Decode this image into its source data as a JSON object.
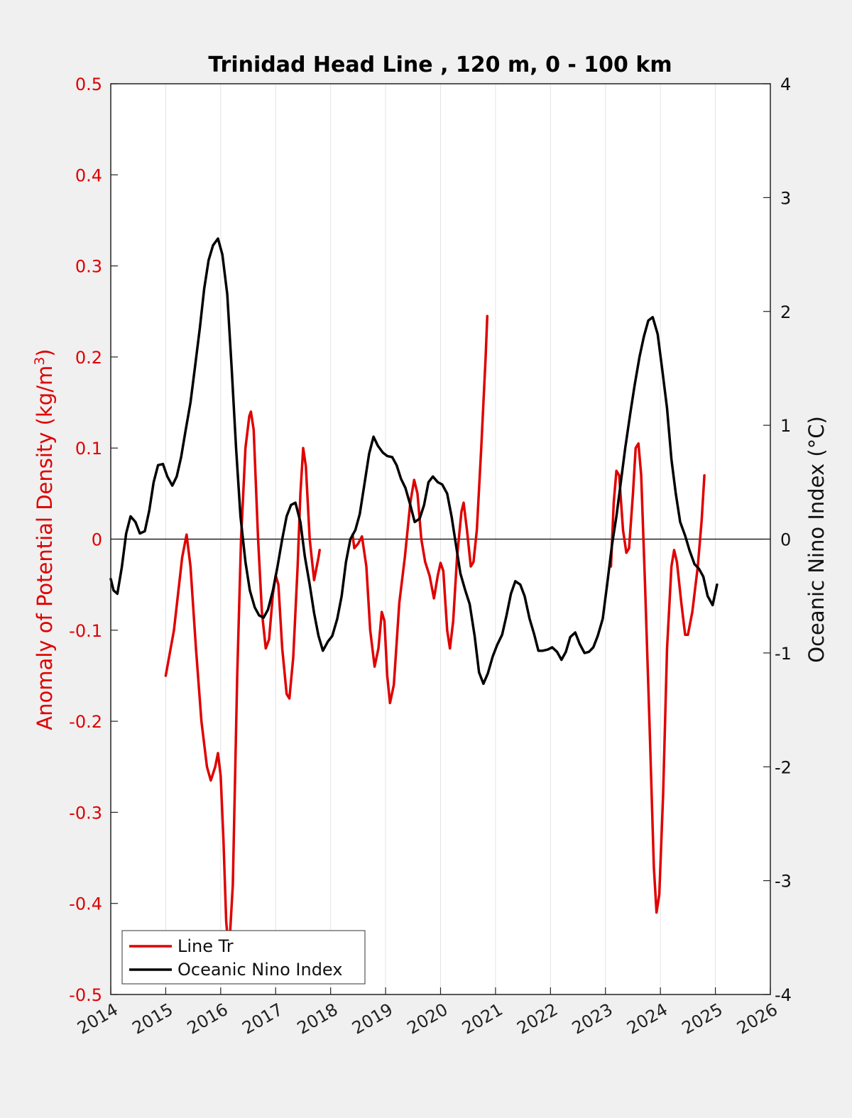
{
  "chart_data": {
    "type": "line",
    "title": "Trinidad Head Line , 120 m, 0 - 100 km",
    "xlim": [
      2014,
      2026
    ],
    "x_ticks": [
      "2014",
      "2015",
      "2016",
      "2017",
      "2018",
      "2019",
      "2020",
      "2021",
      "2022",
      "2023",
      "2024",
      "2025",
      "2026"
    ],
    "grid": "vertical",
    "legend": "bottom-left",
    "zero_line": true,
    "y_left": {
      "label": "Anomaly of Potential Density (kg/m",
      "label_sup": "3",
      "label_tail": ")",
      "ylim": [
        -0.5,
        0.5
      ],
      "ticks": [
        "-0.5",
        "-0.4",
        "-0.3",
        "-0.2",
        "-0.1",
        "0",
        "0.1",
        "0.2",
        "0.3",
        "0.4",
        "0.5"
      ],
      "color": "#e00000"
    },
    "y_right": {
      "label": "Oceanic Nino Index (°C)",
      "ylim": [
        -4,
        4
      ],
      "ticks": [
        "-4",
        "-3",
        "-2",
        "-1",
        "0",
        "1",
        "2",
        "3",
        "4"
      ],
      "color": "#000000"
    },
    "series": [
      {
        "name": "Line Tr",
        "axis": "left",
        "color": "#e00000",
        "segments": [
          [
            [
              2015.0,
              -0.15
            ],
            [
              2015.15,
              -0.1
            ],
            [
              2015.3,
              -0.02
            ],
            [
              2015.38,
              0.005
            ],
            [
              2015.45,
              -0.03
            ],
            [
              2015.55,
              -0.12
            ],
            [
              2015.65,
              -0.2
            ],
            [
              2015.75,
              -0.25
            ],
            [
              2015.82,
              -0.265
            ],
            [
              2015.9,
              -0.25
            ],
            [
              2015.95,
              -0.235
            ],
            [
              2016.0,
              -0.26
            ],
            [
              2016.05,
              -0.33
            ],
            [
              2016.1,
              -0.42
            ],
            [
              2016.15,
              -0.455
            ],
            [
              2016.22,
              -0.38
            ],
            [
              2016.3,
              -0.15
            ],
            [
              2016.37,
              0.0
            ],
            [
              2016.45,
              0.1
            ],
            [
              2016.52,
              0.135
            ],
            [
              2016.55,
              0.14
            ],
            [
              2016.6,
              0.12
            ],
            [
              2016.68,
              0.0
            ],
            [
              2016.75,
              -0.08
            ],
            [
              2016.82,
              -0.12
            ],
            [
              2016.88,
              -0.11
            ],
            [
              2016.95,
              -0.06
            ],
            [
              2017.0,
              -0.04
            ],
            [
              2017.05,
              -0.05
            ],
            [
              2017.12,
              -0.12
            ],
            [
              2017.2,
              -0.17
            ],
            [
              2017.25,
              -0.175
            ],
            [
              2017.32,
              -0.13
            ],
            [
              2017.4,
              -0.03
            ],
            [
              2017.45,
              0.05
            ],
            [
              2017.5,
              0.1
            ],
            [
              2017.55,
              0.08
            ],
            [
              2017.62,
              0.0
            ],
            [
              2017.7,
              -0.045
            ],
            [
              2017.78,
              -0.02
            ],
            [
              2017.8,
              -0.012
            ]
          ],
          [
            [
              2018.4,
              0.005
            ],
            [
              2018.43,
              -0.01
            ],
            [
              2018.5,
              -0.005
            ],
            [
              2018.57,
              0.003
            ],
            [
              2018.65,
              -0.03
            ],
            [
              2018.72,
              -0.1
            ],
            [
              2018.8,
              -0.14
            ],
            [
              2018.87,
              -0.12
            ],
            [
              2018.93,
              -0.08
            ],
            [
              2018.98,
              -0.09
            ],
            [
              2019.03,
              -0.15
            ],
            [
              2019.08,
              -0.18
            ],
            [
              2019.15,
              -0.16
            ],
            [
              2019.25,
              -0.07
            ],
            [
              2019.35,
              -0.02
            ],
            [
              2019.45,
              0.04
            ],
            [
              2019.52,
              0.065
            ],
            [
              2019.58,
              0.05
            ],
            [
              2019.65,
              0.0
            ],
            [
              2019.72,
              -0.025
            ],
            [
              2019.8,
              -0.04
            ],
            [
              2019.88,
              -0.065
            ],
            [
              2019.95,
              -0.04
            ],
            [
              2020.0,
              -0.026
            ],
            [
              2020.05,
              -0.035
            ],
            [
              2020.12,
              -0.1
            ],
            [
              2020.17,
              -0.12
            ],
            [
              2020.23,
              -0.09
            ],
            [
              2020.3,
              -0.02
            ],
            [
              2020.38,
              0.03
            ],
            [
              2020.42,
              0.04
            ],
            [
              2020.48,
              0.01
            ],
            [
              2020.55,
              -0.03
            ],
            [
              2020.6,
              -0.025
            ],
            [
              2020.66,
              0.01
            ],
            [
              2020.74,
              0.1
            ],
            [
              2020.82,
              0.2
            ],
            [
              2020.85,
              0.245
            ]
          ],
          [
            [
              2023.1,
              -0.03
            ],
            [
              2023.15,
              0.04
            ],
            [
              2023.2,
              0.075
            ],
            [
              2023.25,
              0.07
            ],
            [
              2023.32,
              0.01
            ],
            [
              2023.38,
              -0.015
            ],
            [
              2023.43,
              -0.01
            ],
            [
              2023.5,
              0.05
            ],
            [
              2023.55,
              0.1
            ],
            [
              2023.6,
              0.105
            ],
            [
              2023.65,
              0.07
            ],
            [
              2023.72,
              -0.05
            ],
            [
              2023.8,
              -0.2
            ],
            [
              2023.88,
              -0.36
            ],
            [
              2023.93,
              -0.41
            ],
            [
              2023.98,
              -0.39
            ],
            [
              2024.05,
              -0.28
            ],
            [
              2024.12,
              -0.12
            ],
            [
              2024.2,
              -0.03
            ],
            [
              2024.25,
              -0.012
            ],
            [
              2024.3,
              -0.025
            ],
            [
              2024.38,
              -0.07
            ],
            [
              2024.45,
              -0.105
            ],
            [
              2024.5,
              -0.105
            ],
            [
              2024.58,
              -0.08
            ],
            [
              2024.68,
              -0.03
            ],
            [
              2024.75,
              0.02
            ],
            [
              2024.8,
              0.07
            ]
          ]
        ]
      },
      {
        "name": "Oceanic Nino Index",
        "axis": "right",
        "color": "#000000",
        "segments": [
          [
            [
              2014.0,
              -0.35
            ],
            [
              2014.05,
              -0.45
            ],
            [
              2014.12,
              -0.48
            ],
            [
              2014.2,
              -0.25
            ],
            [
              2014.28,
              0.05
            ],
            [
              2014.36,
              0.2
            ],
            [
              2014.45,
              0.15
            ],
            [
              2014.53,
              0.05
            ],
            [
              2014.62,
              0.07
            ],
            [
              2014.7,
              0.25
            ],
            [
              2014.78,
              0.5
            ],
            [
              2014.86,
              0.65
            ],
            [
              2014.95,
              0.66
            ],
            [
              2015.03,
              0.55
            ],
            [
              2015.12,
              0.47
            ],
            [
              2015.2,
              0.55
            ],
            [
              2015.28,
              0.72
            ],
            [
              2015.36,
              0.95
            ],
            [
              2015.45,
              1.2
            ],
            [
              2015.53,
              1.5
            ],
            [
              2015.62,
              1.85
            ],
            [
              2015.7,
              2.2
            ],
            [
              2015.78,
              2.45
            ],
            [
              2015.86,
              2.58
            ],
            [
              2015.95,
              2.64
            ],
            [
              2016.03,
              2.5
            ],
            [
              2016.12,
              2.15
            ],
            [
              2016.2,
              1.5
            ],
            [
              2016.28,
              0.8
            ],
            [
              2016.36,
              0.2
            ],
            [
              2016.45,
              -0.2
            ],
            [
              2016.53,
              -0.45
            ],
            [
              2016.62,
              -0.6
            ],
            [
              2016.7,
              -0.67
            ],
            [
              2016.78,
              -0.69
            ],
            [
              2016.86,
              -0.62
            ],
            [
              2016.95,
              -0.45
            ],
            [
              2017.03,
              -0.25
            ],
            [
              2017.12,
              0.0
            ],
            [
              2017.2,
              0.2
            ],
            [
              2017.28,
              0.3
            ],
            [
              2017.36,
              0.32
            ],
            [
              2017.45,
              0.15
            ],
            [
              2017.53,
              -0.15
            ],
            [
              2017.62,
              -0.4
            ],
            [
              2017.7,
              -0.65
            ],
            [
              2017.78,
              -0.85
            ],
            [
              2017.86,
              -0.98
            ],
            [
              2017.95,
              -0.9
            ],
            [
              2018.03,
              -0.85
            ],
            [
              2018.12,
              -0.7
            ],
            [
              2018.2,
              -0.5
            ],
            [
              2018.28,
              -0.2
            ],
            [
              2018.36,
              0.0
            ],
            [
              2018.45,
              0.08
            ],
            [
              2018.53,
              0.22
            ],
            [
              2018.62,
              0.5
            ],
            [
              2018.7,
              0.75
            ],
            [
              2018.78,
              0.9
            ],
            [
              2018.86,
              0.82
            ],
            [
              2018.95,
              0.76
            ],
            [
              2019.03,
              0.73
            ],
            [
              2019.12,
              0.72
            ],
            [
              2019.2,
              0.65
            ],
            [
              2019.28,
              0.53
            ],
            [
              2019.36,
              0.45
            ],
            [
              2019.45,
              0.3
            ],
            [
              2019.53,
              0.15
            ],
            [
              2019.62,
              0.18
            ],
            [
              2019.7,
              0.3
            ],
            [
              2019.78,
              0.5
            ],
            [
              2019.86,
              0.55
            ],
            [
              2019.95,
              0.5
            ],
            [
              2020.03,
              0.48
            ],
            [
              2020.12,
              0.4
            ],
            [
              2020.2,
              0.2
            ],
            [
              2020.28,
              -0.05
            ],
            [
              2020.36,
              -0.3
            ],
            [
              2020.45,
              -0.45
            ],
            [
              2020.53,
              -0.57
            ],
            [
              2020.62,
              -0.85
            ],
            [
              2020.7,
              -1.17
            ],
            [
              2020.78,
              -1.27
            ],
            [
              2020.86,
              -1.18
            ],
            [
              2020.95,
              -1.03
            ],
            [
              2021.03,
              -0.93
            ],
            [
              2021.12,
              -0.84
            ],
            [
              2021.2,
              -0.67
            ],
            [
              2021.28,
              -0.48
            ],
            [
              2021.36,
              -0.37
            ],
            [
              2021.45,
              -0.4
            ],
            [
              2021.53,
              -0.5
            ],
            [
              2021.62,
              -0.7
            ],
            [
              2021.7,
              -0.83
            ],
            [
              2021.78,
              -0.98
            ],
            [
              2021.86,
              -0.98
            ],
            [
              2021.95,
              -0.97
            ],
            [
              2022.03,
              -0.95
            ],
            [
              2022.12,
              -0.99
            ],
            [
              2022.2,
              -1.06
            ],
            [
              2022.28,
              -0.99
            ],
            [
              2022.36,
              -0.86
            ],
            [
              2022.45,
              -0.82
            ],
            [
              2022.53,
              -0.92
            ],
            [
              2022.62,
              -1.0
            ],
            [
              2022.7,
              -0.99
            ],
            [
              2022.78,
              -0.95
            ],
            [
              2022.86,
              -0.85
            ],
            [
              2022.95,
              -0.7
            ],
            [
              2023.03,
              -0.4
            ],
            [
              2023.12,
              -0.05
            ],
            [
              2023.2,
              0.2
            ],
            [
              2023.28,
              0.5
            ],
            [
              2023.36,
              0.8
            ],
            [
              2023.45,
              1.1
            ],
            [
              2023.53,
              1.35
            ],
            [
              2023.62,
              1.6
            ],
            [
              2023.7,
              1.78
            ],
            [
              2023.78,
              1.92
            ],
            [
              2023.86,
              1.95
            ],
            [
              2023.95,
              1.8
            ],
            [
              2024.03,
              1.5
            ],
            [
              2024.12,
              1.15
            ],
            [
              2024.2,
              0.7
            ],
            [
              2024.28,
              0.4
            ],
            [
              2024.36,
              0.15
            ],
            [
              2024.45,
              0.03
            ],
            [
              2024.53,
              -0.1
            ],
            [
              2024.62,
              -0.22
            ],
            [
              2024.7,
              -0.26
            ],
            [
              2024.78,
              -0.33
            ],
            [
              2024.86,
              -0.5
            ],
            [
              2024.95,
              -0.58
            ],
            [
              2025.03,
              -0.4
            ]
          ]
        ]
      }
    ]
  }
}
